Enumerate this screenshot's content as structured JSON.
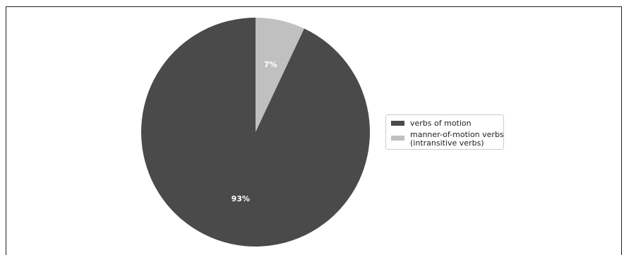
{
  "chart_data": {
    "type": "pie",
    "title": "",
    "start_angle_deg": 90,
    "direction": "clockwise",
    "slices": [
      {
        "label": "verbs of motion",
        "value": 93,
        "pct_label": "93%",
        "color": "#4a4a4a"
      },
      {
        "label": "manner-of-motion verbs\n(intransitive verbs)",
        "value": 7,
        "pct_label": "7%",
        "color": "#c0c0c0"
      }
    ],
    "legend_position": "right"
  },
  "legend": {
    "item_0": "verbs of motion",
    "item_1": "manner-of-motion verbs\n(intransitive verbs)"
  }
}
